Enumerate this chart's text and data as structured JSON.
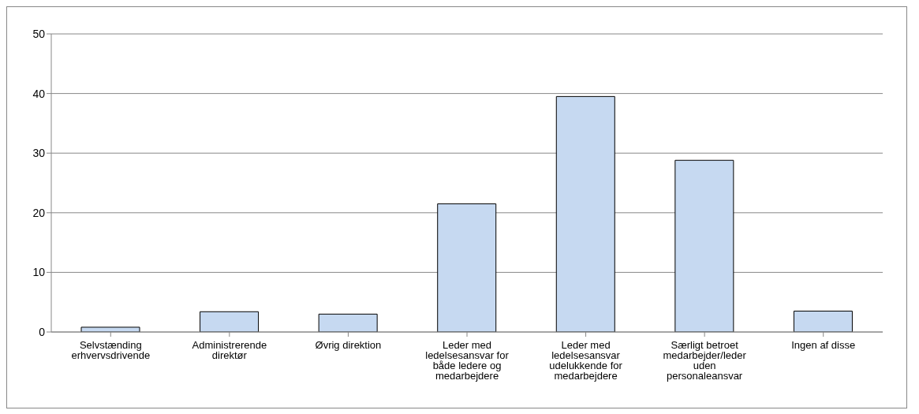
{
  "chart_data": {
    "type": "bar",
    "categories": [
      "Selvstænding erhvervsdrivende",
      "Administrerende direktør",
      "Øvrig direktion",
      "Leder med ledelsesansvar for både ledere og medarbejdere",
      "Leder med ledelsesansvar udelukkende for medarbejdere",
      "Særligt betroet medarbejder/leder uden personaleansvar",
      "Ingen af disse"
    ],
    "values": [
      0.8,
      3.4,
      3.0,
      21.5,
      39.5,
      28.8,
      3.5
    ],
    "color": "#c6d9f1",
    "ylim": [
      0,
      50
    ],
    "yticks": [
      0,
      10,
      20,
      30,
      40,
      50
    ],
    "grid": "y",
    "legend": false
  }
}
